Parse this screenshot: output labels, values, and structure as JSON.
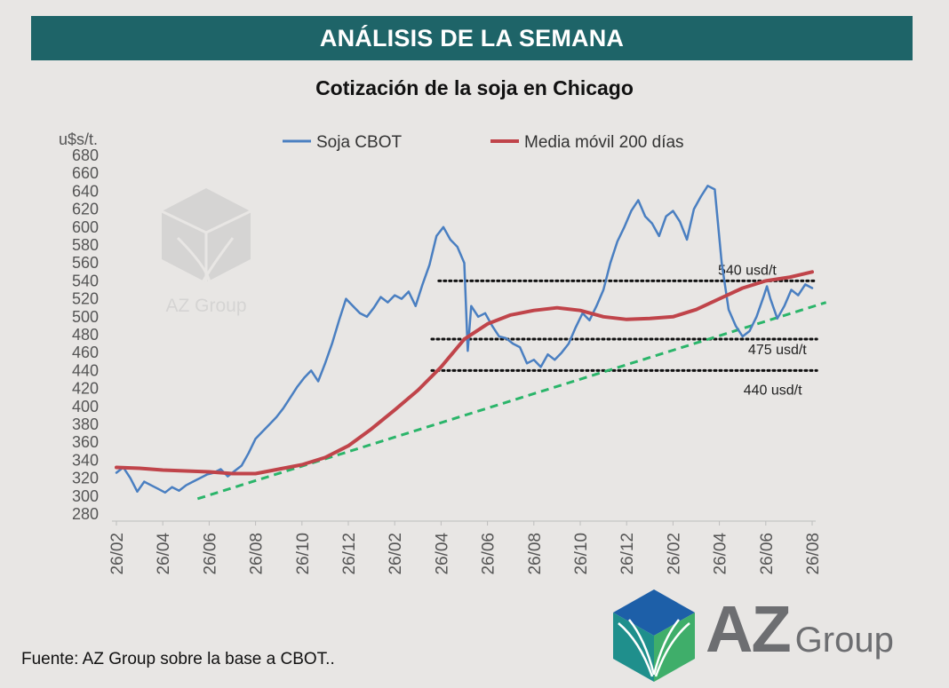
{
  "header": {
    "banner_title": "ANÁLISIS DE LA SEMANA"
  },
  "chart_data": {
    "type": "line",
    "title": "Cotización de la soja en Chicago",
    "ylabel": "u$s/t.",
    "xlabel": "",
    "ylim": [
      280,
      680
    ],
    "ystep": 20,
    "xlim": [
      0,
      30
    ],
    "x_tick_labels": [
      "26/02",
      "26/04",
      "26/06",
      "26/08",
      "26/10",
      "26/12",
      "26/02",
      "26/04",
      "26/06",
      "26/08",
      "26/10",
      "26/12",
      "26/02",
      "26/04",
      "26/06",
      "26/08"
    ],
    "x_tick_positions": [
      0,
      2,
      4,
      6,
      8,
      10,
      12,
      14,
      16,
      18,
      20,
      22,
      24,
      26,
      28,
      30
    ],
    "grid": false,
    "legend": "top",
    "series": [
      {
        "name": "Soja CBOT",
        "color": "#4a7fc1",
        "x": [
          0,
          0.3,
          0.6,
          0.9,
          1.2,
          1.5,
          1.8,
          2.1,
          2.4,
          2.7,
          3.0,
          3.3,
          3.6,
          3.9,
          4.2,
          4.5,
          4.8,
          5.1,
          5.4,
          5.7,
          6.0,
          6.3,
          6.6,
          6.9,
          7.2,
          7.5,
          7.8,
          8.1,
          8.4,
          8.7,
          9.0,
          9.3,
          9.6,
          9.9,
          10.2,
          10.5,
          10.8,
          11.1,
          11.4,
          11.7,
          12.0,
          12.3,
          12.6,
          12.9,
          13.2,
          13.5,
          13.8,
          14.1,
          14.4,
          14.7,
          15.0,
          15.15,
          15.3,
          15.6,
          15.9,
          16.2,
          16.5,
          16.8,
          17.1,
          17.4,
          17.7,
          18.0,
          18.3,
          18.6,
          18.9,
          19.2,
          19.5,
          19.8,
          20.1,
          20.4,
          20.7,
          21.0,
          21.3,
          21.6,
          21.9,
          22.2,
          22.5,
          22.8,
          23.1,
          23.4,
          23.7,
          24.0,
          24.3,
          24.6,
          24.9,
          25.2,
          25.5,
          25.8,
          26.1,
          26.4,
          26.7,
          27.0,
          27.3,
          27.6,
          27.9,
          28.05,
          28.2,
          28.5,
          28.8,
          29.1,
          29.4,
          29.7,
          30.0
        ],
        "y": [
          326,
          332,
          320,
          305,
          316,
          312,
          308,
          304,
          310,
          306,
          312,
          316,
          320,
          324,
          326,
          330,
          322,
          328,
          334,
          348,
          364,
          372,
          380,
          388,
          398,
          410,
          422,
          432,
          440,
          428,
          448,
          470,
          496,
          520,
          512,
          504,
          500,
          510,
          522,
          516,
          524,
          520,
          528,
          512,
          536,
          558,
          590,
          600,
          586,
          578,
          560,
          462,
          512,
          500,
          504,
          490,
          478,
          476,
          470,
          466,
          448,
          452,
          444,
          458,
          452,
          460,
          470,
          488,
          504,
          496,
          512,
          530,
          560,
          584,
          600,
          618,
          630,
          612,
          604,
          590,
          612,
          618,
          606,
          586,
          620,
          634,
          646,
          642,
          560,
          508,
          490,
          478,
          484,
          500,
          522,
          534,
          520,
          498,
          512,
          530,
          524,
          536,
          532
        ],
        "values": [
          326,
          332,
          320,
          305,
          316,
          312,
          308,
          304,
          310,
          306,
          312,
          316,
          320,
          324,
          326,
          330,
          322,
          328,
          334,
          348,
          364,
          372,
          380,
          388,
          398,
          410,
          422,
          432,
          440,
          428,
          448,
          470,
          496,
          520,
          512,
          504,
          500,
          510,
          522,
          516,
          524,
          520,
          528,
          512,
          536,
          558,
          590,
          600,
          586,
          578,
          560,
          462,
          512,
          500,
          504,
          490,
          478,
          476,
          470,
          466,
          448,
          452,
          444,
          458,
          452,
          460,
          470,
          488,
          504,
          496,
          512,
          530,
          560,
          584,
          600,
          618,
          630,
          612,
          604,
          590,
          612,
          618,
          606,
          586,
          620,
          634,
          646,
          642,
          560,
          508,
          490,
          478,
          484,
          500,
          522,
          534,
          520,
          498,
          512,
          530,
          524,
          536,
          532
        ]
      },
      {
        "name": "Media móvil 200 días",
        "color": "#c0444a",
        "x": [
          0,
          1,
          2,
          3,
          4,
          5,
          6,
          7,
          8,
          9,
          10,
          11,
          12,
          13,
          14,
          15,
          16,
          17,
          18,
          19,
          20,
          21,
          22,
          23,
          24,
          25,
          26,
          27,
          28,
          29,
          30
        ],
        "y": [
          332,
          331,
          329,
          328,
          327,
          325,
          325,
          330,
          335,
          343,
          356,
          375,
          396,
          418,
          444,
          475,
          492,
          502,
          507,
          510,
          507,
          500,
          497,
          498,
          500,
          508,
          520,
          532,
          540,
          544,
          550
        ],
        "values": [
          332,
          331,
          329,
          328,
          327,
          325,
          325,
          330,
          335,
          343,
          356,
          375,
          396,
          418,
          444,
          475,
          492,
          502,
          507,
          510,
          507,
          500,
          497,
          498,
          500,
          508,
          520,
          532,
          540,
          544,
          550
        ]
      }
    ],
    "reference_lines": [
      {
        "label": "540 usd/t",
        "value": 540,
        "x_start": 13.9,
        "x_end": 30.2
      },
      {
        "label": "475 usd/t",
        "value": 475,
        "x_start": 13.6,
        "x_end": 30.2
      },
      {
        "label": "440 usd/t",
        "value": 440,
        "x_start": 13.6,
        "x_end": 30.2
      }
    ],
    "trend_line": {
      "color": "#2bb56a",
      "x": [
        3.5,
        30.6
      ],
      "y": [
        297,
        516
      ]
    }
  },
  "footer": {
    "source": "Fuente: AZ Group sobre la base a CBOT..",
    "logo_primary": "AZ",
    "logo_secondary": "Group"
  },
  "watermark": {
    "text": "AZ Group"
  }
}
